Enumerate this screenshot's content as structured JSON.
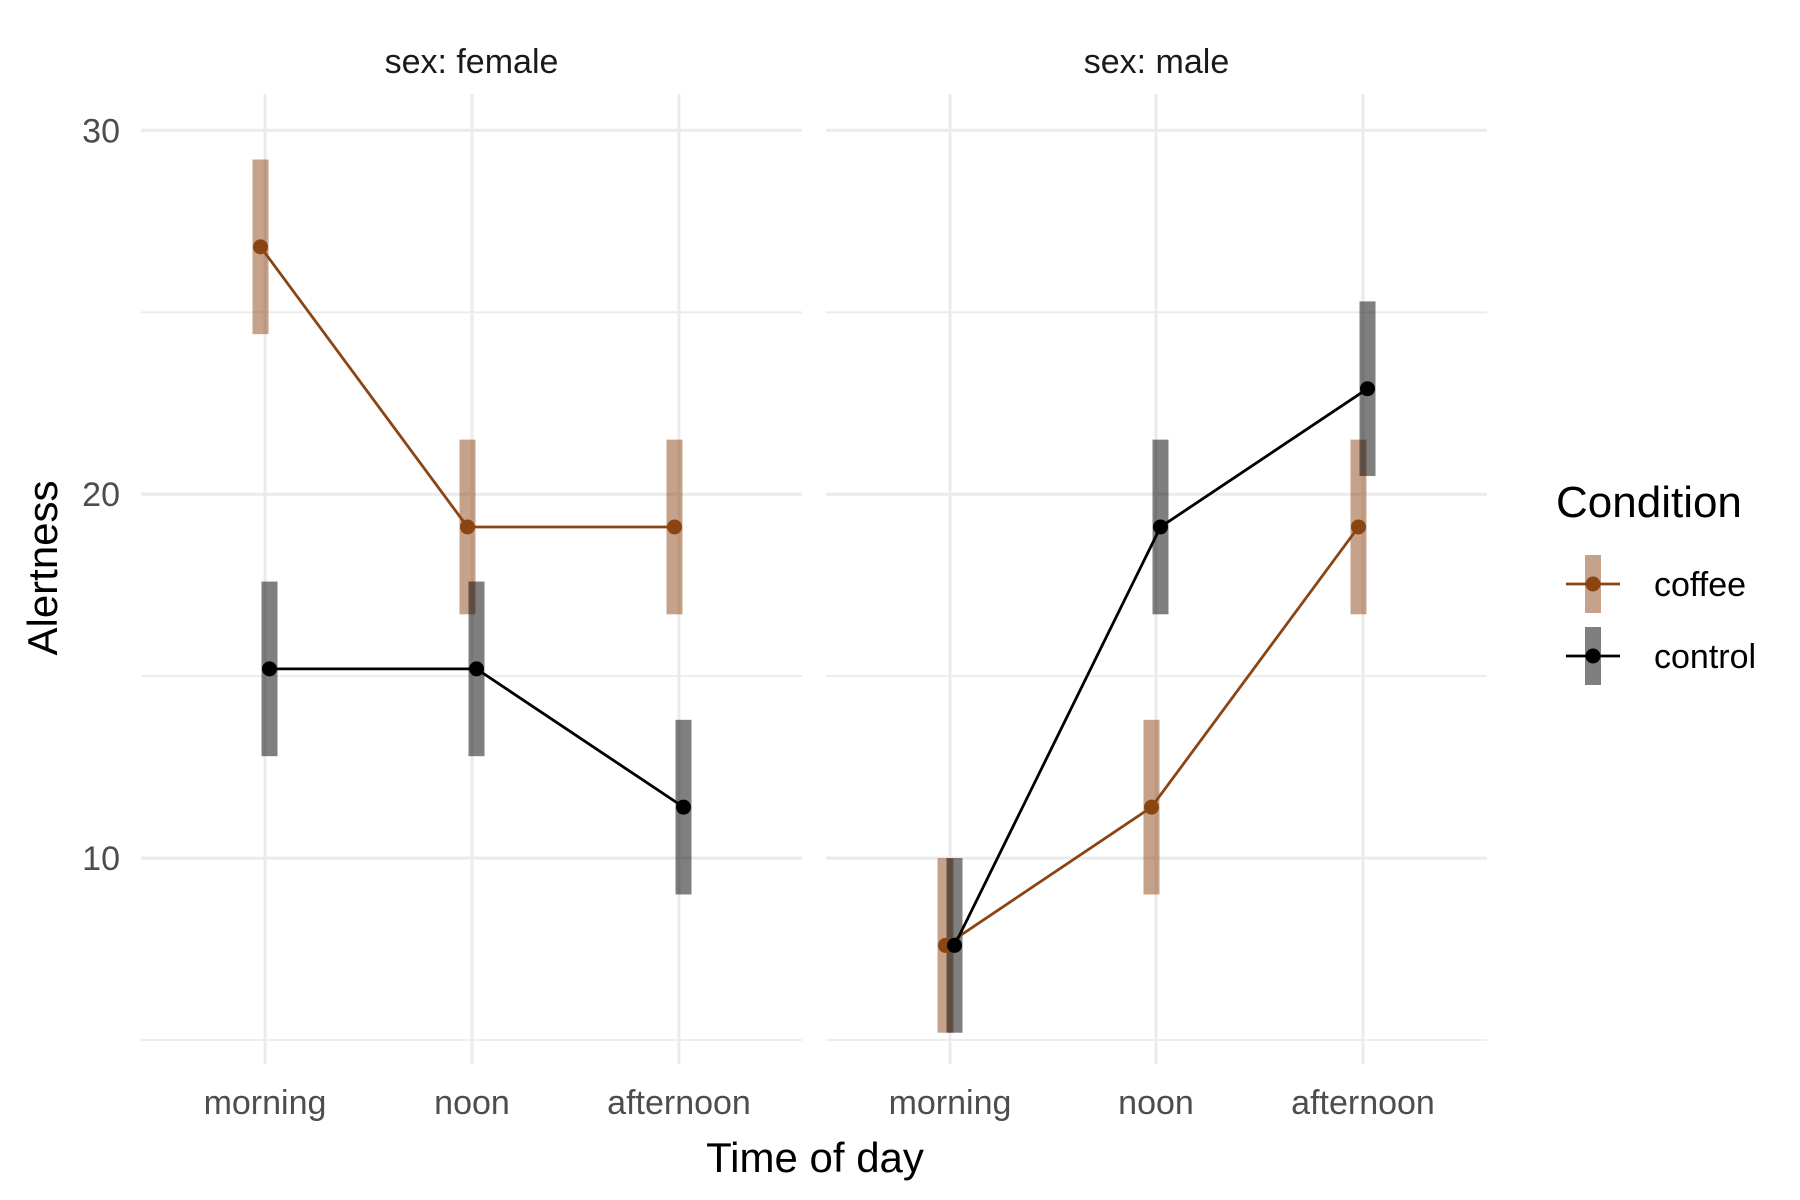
{
  "chart_data": {
    "type": "line",
    "xlabel": "Time of day",
    "ylabel": "Alertness",
    "categories": [
      "morning",
      "noon",
      "afternoon"
    ],
    "ylim": [
      5,
      31
    ],
    "yticks": [
      10,
      20,
      30
    ],
    "grid": true,
    "legend": {
      "title": "Condition",
      "placement": "right",
      "entries": [
        "coffee",
        "control"
      ]
    },
    "colors": {
      "coffee": "#8B4513",
      "control": "#000000"
    },
    "panels": [
      {
        "label": "sex: female",
        "series": [
          {
            "name": "coffee",
            "values": [
              26.8,
              19.1,
              19.1
            ],
            "lower": [
              24.4,
              16.7,
              16.7
            ],
            "upper": [
              29.2,
              21.5,
              21.5
            ]
          },
          {
            "name": "control",
            "values": [
              15.2,
              15.2,
              11.4
            ],
            "lower": [
              12.8,
              12.8,
              9.0
            ],
            "upper": [
              17.6,
              17.6,
              13.8
            ]
          }
        ]
      },
      {
        "label": "sex: male",
        "series": [
          {
            "name": "coffee",
            "values": [
              7.6,
              11.4,
              19.1
            ],
            "lower": [
              5.2,
              9.0,
              16.7
            ],
            "upper": [
              10.0,
              13.8,
              21.5
            ]
          },
          {
            "name": "control",
            "values": [
              7.6,
              19.1,
              22.9
            ],
            "lower": [
              5.2,
              16.7,
              20.5
            ],
            "upper": [
              10.0,
              21.5,
              25.3
            ]
          }
        ]
      }
    ]
  }
}
